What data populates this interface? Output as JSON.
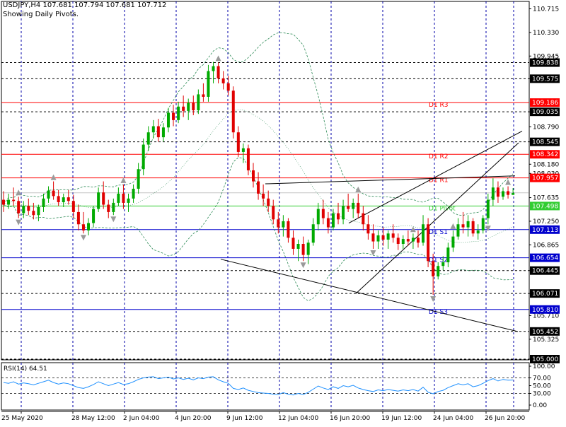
{
  "header": {
    "symbol_line": "USDJPY,H4  107.681 107.794 107.681 107.712",
    "subtitle": "Showing Daily Pivots."
  },
  "rsi_label": "RSI(14) 64.51",
  "colors": {
    "candle_up": "#00aa00",
    "candle_down": "#e00000",
    "fractal": "#9a9a9a",
    "band": "#2e8b57",
    "rsi": "#1e90ff",
    "pivot_green": "#32cd32",
    "pivot_red": "#ff0000",
    "pivot_blue": "#0000cd",
    "grid": "#0000aa",
    "black_line": "#000000"
  },
  "chart_data": [
    {
      "type": "candlestick",
      "title": "USDJPY,H4",
      "ylim": [
        105.0,
        111.0
      ],
      "price_ticks": [
        "110.715",
        "110.330",
        "109.945",
        "109.575",
        "109.035",
        "108.790",
        "108.545",
        "108.180",
        "108.030",
        "107.635",
        "107.250",
        "106.865",
        "106.445",
        "106.071",
        "105.710",
        "105.325",
        "105.000"
      ],
      "x_tick_labels": [
        "25 May 2020",
        "28 May 12:00",
        "2 Jun 04:00",
        "4 Jun 20:00",
        "9 Jun 12:00",
        "12 Jun 04:00",
        "16 Jun 20:00",
        "19 Jun 12:00",
        "24 Jun 04:00",
        "26 Jun 20:00"
      ],
      "horizontal_levels": [
        {
          "price": 109.838,
          "label": "109.838",
          "style": "dashed-black"
        },
        {
          "price": 109.575,
          "label": "109.575",
          "style": "dashed-black"
        },
        {
          "price": 109.186,
          "label": "109.186",
          "name": "D1 R3",
          "style": "red"
        },
        {
          "price": 109.035,
          "label": "109.035",
          "style": "dashed-black"
        },
        {
          "price": 108.545,
          "label": "108.545",
          "style": "dashed-black"
        },
        {
          "price": 108.342,
          "label": "108.342",
          "name": "D1 R2",
          "style": "red"
        },
        {
          "price": 107.957,
          "label": "107.957",
          "name": "D1 R1",
          "style": "red"
        },
        {
          "price": 107.498,
          "label": "107.498",
          "name": "D1 Pivot",
          "style": "green"
        },
        {
          "price": 107.113,
          "label": "107.113",
          "name": "D1 S1",
          "style": "blue"
        },
        {
          "price": 106.654,
          "label": "106.654",
          "name": "D1 S2",
          "style": "blue"
        },
        {
          "price": 106.445,
          "label": "106.445",
          "style": "dashed-black"
        },
        {
          "price": 106.071,
          "label": "106.071",
          "style": "dashed-black"
        },
        {
          "price": 105.81,
          "label": "105.810",
          "name": "D1 S3",
          "style": "blue"
        },
        {
          "price": 105.452,
          "label": "105.452",
          "style": "dashed-black"
        },
        {
          "price": 105.0,
          "label": "105.000",
          "style": "dashed-black"
        }
      ],
      "current_price": 107.712,
      "candles": [
        [
          107.6,
          107.74,
          107.4,
          107.52
        ],
        [
          107.52,
          107.7,
          107.45,
          107.6
        ],
        [
          107.6,
          107.8,
          107.5,
          107.58
        ],
        [
          107.58,
          107.65,
          107.3,
          107.38
        ],
        [
          107.38,
          107.58,
          107.3,
          107.5
        ],
        [
          107.5,
          107.62,
          107.35,
          107.42
        ],
        [
          107.42,
          107.55,
          107.28,
          107.35
        ],
        [
          107.35,
          107.52,
          107.25,
          107.48
        ],
        [
          107.48,
          107.7,
          107.4,
          107.62
        ],
        [
          107.62,
          107.82,
          107.55,
          107.75
        ],
        [
          107.75,
          107.9,
          107.6,
          107.66
        ],
        [
          107.66,
          107.76,
          107.5,
          107.56
        ],
        [
          107.56,
          107.7,
          107.48,
          107.64
        ],
        [
          107.64,
          107.76,
          107.52,
          107.58
        ],
        [
          107.58,
          107.68,
          107.3,
          107.4
        ],
        [
          107.4,
          107.52,
          107.1,
          107.2
        ],
        [
          107.2,
          107.4,
          107.05,
          107.1
        ],
        [
          107.1,
          107.3,
          107.02,
          107.22
        ],
        [
          107.22,
          107.5,
          107.15,
          107.45
        ],
        [
          107.45,
          107.8,
          107.4,
          107.72
        ],
        [
          107.72,
          107.9,
          107.45,
          107.52
        ],
        [
          107.52,
          107.6,
          107.3,
          107.4
        ],
        [
          107.4,
          107.62,
          107.35,
          107.55
        ],
        [
          107.55,
          107.8,
          107.5,
          107.7
        ],
        [
          107.7,
          107.85,
          107.45,
          107.55
        ],
        [
          107.55,
          107.7,
          107.4,
          107.62
        ],
        [
          107.62,
          107.85,
          107.55,
          107.78
        ],
        [
          107.78,
          108.2,
          107.7,
          108.1
        ],
        [
          108.1,
          108.6,
          108.0,
          108.5
        ],
        [
          108.5,
          108.8,
          108.4,
          108.7
        ],
        [
          108.7,
          108.9,
          108.6,
          108.8
        ],
        [
          108.8,
          108.92,
          108.55,
          108.62
        ],
        [
          108.62,
          108.85,
          108.55,
          108.78
        ],
        [
          108.78,
          109.1,
          108.7,
          109.02
        ],
        [
          109.02,
          109.15,
          108.8,
          108.9
        ],
        [
          108.9,
          109.2,
          108.85,
          109.12
        ],
        [
          109.12,
          109.3,
          108.95,
          109.05
        ],
        [
          109.05,
          109.25,
          108.9,
          109.18
        ],
        [
          109.18,
          109.3,
          108.98,
          109.06
        ],
        [
          109.06,
          109.4,
          109.0,
          109.32
        ],
        [
          109.32,
          109.5,
          109.2,
          109.28
        ],
        [
          109.28,
          109.8,
          109.2,
          109.7
        ],
        [
          109.7,
          109.85,
          109.5,
          109.78
        ],
        [
          109.78,
          109.84,
          109.5,
          109.58
        ],
        [
          109.58,
          109.7,
          109.4,
          109.5
        ],
        [
          109.5,
          109.62,
          109.3,
          109.38
        ],
        [
          109.38,
          109.45,
          108.6,
          108.7
        ],
        [
          108.7,
          108.8,
          108.3,
          108.38
        ],
        [
          108.38,
          108.52,
          108.2,
          108.44
        ],
        [
          108.44,
          108.5,
          108.0,
          108.08
        ],
        [
          108.08,
          108.2,
          107.8,
          107.9
        ],
        [
          107.9,
          108.05,
          107.6,
          107.7
        ],
        [
          107.7,
          107.85,
          107.5,
          107.62
        ],
        [
          107.62,
          107.75,
          107.4,
          107.5
        ],
        [
          107.5,
          107.6,
          107.2,
          107.28
        ],
        [
          107.28,
          107.4,
          107.05,
          107.15
        ],
        [
          107.15,
          107.35,
          107.0,
          107.25
        ],
        [
          107.25,
          107.3,
          106.9,
          106.98
        ],
        [
          106.98,
          107.1,
          106.7,
          106.8
        ],
        [
          106.8,
          106.95,
          106.6,
          106.88
        ],
        [
          106.88,
          107.0,
          106.6,
          106.7
        ],
        [
          106.7,
          106.95,
          106.55,
          106.9
        ],
        [
          106.9,
          107.3,
          106.85,
          107.2
        ],
        [
          107.2,
          107.55,
          107.1,
          107.45
        ],
        [
          107.45,
          107.6,
          107.2,
          107.3
        ],
        [
          107.3,
          107.4,
          107.05,
          107.15
        ],
        [
          107.15,
          107.45,
          107.1,
          107.38
        ],
        [
          107.38,
          107.55,
          107.2,
          107.28
        ],
        [
          107.28,
          107.6,
          107.2,
          107.5
        ],
        [
          107.5,
          107.7,
          107.4,
          107.45
        ],
        [
          107.45,
          107.62,
          107.3,
          107.55
        ],
        [
          107.55,
          107.7,
          107.3,
          107.38
        ],
        [
          107.38,
          107.5,
          107.1,
          107.2
        ],
        [
          107.2,
          107.35,
          106.95,
          107.05
        ],
        [
          107.05,
          107.2,
          106.8,
          106.92
        ],
        [
          106.92,
          107.1,
          106.8,
          107.02
        ],
        [
          107.02,
          107.15,
          106.85,
          106.95
        ],
        [
          106.95,
          107.1,
          106.8,
          107.05
        ],
        [
          107.05,
          107.2,
          106.9,
          106.98
        ],
        [
          106.98,
          107.05,
          106.78,
          106.88
        ],
        [
          106.88,
          107.02,
          106.8,
          106.96
        ],
        [
          106.96,
          107.1,
          106.85,
          106.92
        ],
        [
          106.92,
          107.05,
          106.8,
          106.98
        ],
        [
          106.98,
          107.1,
          106.82,
          106.9
        ],
        [
          106.9,
          107.35,
          106.85,
          107.2
        ],
        [
          107.2,
          107.3,
          106.5,
          106.6
        ],
        [
          106.6,
          106.72,
          106.05,
          106.35
        ],
        [
          106.35,
          106.58,
          106.3,
          106.52
        ],
        [
          106.52,
          106.68,
          106.45,
          106.58
        ],
        [
          106.58,
          106.9,
          106.5,
          106.82
        ],
        [
          106.82,
          107.1,
          106.75,
          107.0
        ],
        [
          107.0,
          107.3,
          106.95,
          107.2
        ],
        [
          107.2,
          107.4,
          107.05,
          107.15
        ],
        [
          107.15,
          107.35,
          107.0,
          107.25
        ],
        [
          107.25,
          107.3,
          107.0,
          107.05
        ],
        [
          107.05,
          107.2,
          106.95,
          107.1
        ],
        [
          107.1,
          107.35,
          107.05,
          107.3
        ],
        [
          107.3,
          107.7,
          107.2,
          107.6
        ],
        [
          107.6,
          107.95,
          107.5,
          107.8
        ],
        [
          107.8,
          107.9,
          107.55,
          107.65
        ],
        [
          107.65,
          107.8,
          107.6,
          107.74
        ],
        [
          107.74,
          107.82,
          107.62,
          107.68
        ],
        [
          107.68,
          107.79,
          107.68,
          107.71
        ]
      ],
      "upper_fractals": [
        3,
        10,
        24,
        43,
        71,
        82,
        90,
        101
      ],
      "lower_fractals": [
        3,
        16,
        22,
        60,
        74,
        86,
        97
      ]
    },
    {
      "type": "line",
      "title": "RSI(14) 64.51",
      "ylim": [
        0,
        100
      ],
      "y_ticks": [
        "100.00",
        "70.00",
        "50.00",
        "30.00",
        "0.00"
      ],
      "series": [
        {
          "name": "RSI(14)",
          "last": 64.51,
          "values": [
            58,
            56,
            60,
            54,
            57,
            55,
            52,
            56,
            60,
            64,
            58,
            54,
            57,
            55,
            50,
            45,
            43,
            47,
            53,
            60,
            55,
            50,
            54,
            58,
            53,
            55,
            60,
            66,
            70,
            72,
            73,
            68,
            70,
            72,
            67,
            70,
            66,
            69,
            65,
            70,
            68,
            72,
            73,
            65,
            60,
            56,
            43,
            40,
            44,
            38,
            35,
            32,
            31,
            30,
            28,
            27,
            32,
            28,
            26,
            30,
            27,
            33,
            41,
            49,
            44,
            40,
            47,
            43,
            50,
            47,
            51,
            44,
            40,
            37,
            35,
            39,
            37,
            40,
            38,
            36,
            39,
            37,
            40,
            36,
            46,
            33,
            29,
            35,
            38,
            45,
            50,
            55,
            52,
            55,
            47,
            50,
            56,
            63,
            68,
            62,
            66,
            64,
            64.5
          ]
        }
      ]
    }
  ]
}
